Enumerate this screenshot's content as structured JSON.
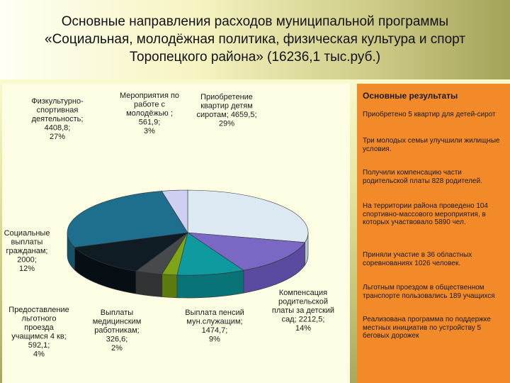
{
  "slide": {
    "title_lines": [
      "Основные направления расходов муниципальной программы",
      "«Социальная, молодёжная политика, физическая культура и спорт",
      "Торопецкого района» (16236,1 тыс.руб.)"
    ]
  },
  "results": {
    "title": "Основные результаты",
    "items": [
      "Приобретено 5 квартир для детей-сирот",
      "Три молодых семьи улучшили жилищные условия.",
      "Получили компенсацию части родительской платы 828 родителей.",
      "На территории района проведено 104 спортивно-массового мероприятия, в которых участвовало 5890 чел.",
      "Приняли участие в 36 областных соревнованиях 1026 человек.",
      "Льготным проездом в общественном транспорте пользовались 189 учащихся",
      "Реализована программа по поддержке местных инициатив по устройству 5 беговых дорожек"
    ]
  },
  "chart_data": {
    "type": "pie",
    "style": "3d",
    "title": "Основные направления расходов муниципальной программы «Социальная, молодёжная политика, физическая культура и спорт Торопецкого района» (16236,1 тыс.руб.)",
    "total": 16236.1,
    "unit": "тыс.руб.",
    "slices": [
      {
        "name": "Приобретение квартир детям сиротам",
        "value": 4659.5,
        "percent": 29,
        "color": "#dde9f2",
        "side": "#b6c6d2",
        "label_lines": [
          "Приобретение",
          "квартир детям",
          "сиротам; 4659,5;",
          "29%"
        ]
      },
      {
        "name": "Компенсация родительской платы за детский сад",
        "value": 2212.5,
        "percent": 14,
        "color": "#7b68c4",
        "side": "#5b4aa0",
        "label_lines": [
          "Компенсация",
          "родительской",
          "платы за детский",
          "сад; 2212,5;",
          "14%"
        ]
      },
      {
        "name": "Выплата пенсий мун.служащим",
        "value": 1474.7,
        "percent": 9,
        "color": "#0f9aa0",
        "side": "#0a7378",
        "label_lines": [
          "Выплата пенсий",
          "мун.служащим;",
          "1474,7;",
          "9%"
        ]
      },
      {
        "name": "Выплаты медицинским работникам",
        "value": 326.6,
        "percent": 2,
        "color": "#7fa416",
        "side": "#5d7a0c",
        "label_lines": [
          "Выплаты",
          "медицинским",
          "работникам;",
          "326,6;",
          "2%"
        ]
      },
      {
        "name": "Предоставление льготного проезда учащимся 4 кв",
        "value": 592.1,
        "percent": 4,
        "color": "#474a4d",
        "side": "#303234",
        "label_lines": [
          "Предоставление",
          "льготного",
          "проезда",
          "учащимся 4 кв;",
          "592,1;",
          "4%"
        ]
      },
      {
        "name": "Социальные выплаты гражданам",
        "value": 2000,
        "percent": 12,
        "color": "#0f1c24",
        "side": "#080f14",
        "label_lines": [
          "Социальные",
          "выплаты",
          "гражданам;",
          "2000;",
          "12%"
        ]
      },
      {
        "name": "Физкультурно-спортивная деятельность",
        "value": 4408.8,
        "percent": 27,
        "color": "#1e6f8e",
        "side": "#14526a",
        "label_lines": [
          "Физкультурно-",
          "спортивная",
          "деятельность;",
          "4408,8;",
          "27%"
        ]
      },
      {
        "name": "Мероприятия по работе с молодёжью",
        "value": 561.9,
        "percent": 3,
        "color": "#cfcff2",
        "side": "#a9a9d0",
        "label_lines": [
          "Мероприятия по",
          "работе с",
          "молодёжью ;",
          "561,9;",
          "3%"
        ]
      }
    ]
  }
}
